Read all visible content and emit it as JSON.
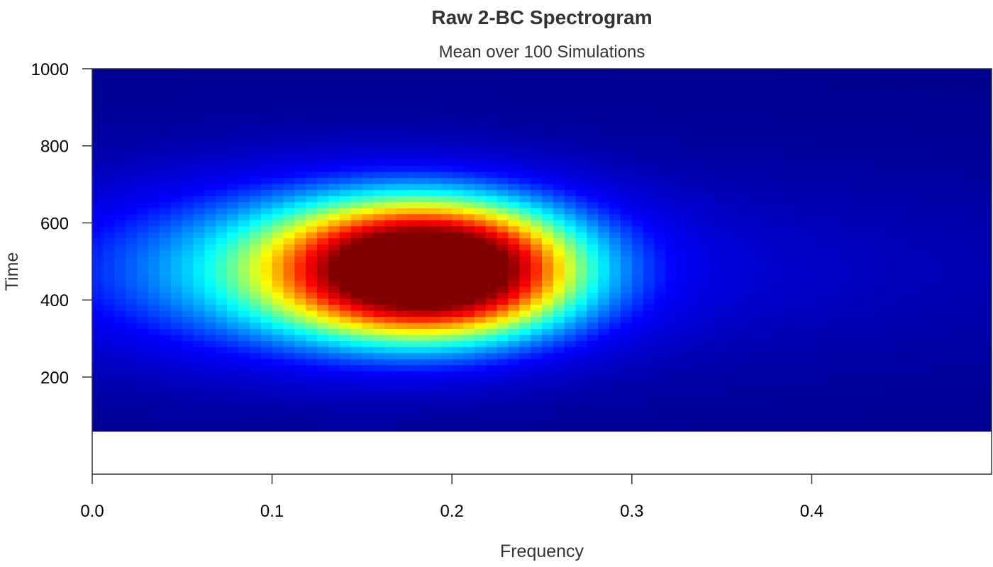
{
  "chart_data": {
    "type": "heatmap",
    "title": "Raw 2-BC Spectrogram",
    "subtitle": "Mean over 100 Simulations",
    "xlabel": "Frequency",
    "ylabel": "Time",
    "xlim": [
      0.0,
      0.5
    ],
    "ylim": [
      0,
      1000
    ],
    "x_ticks": [
      "0.0",
      "0.1",
      "0.2",
      "0.3",
      "0.4"
    ],
    "y_ticks": [
      "200",
      "400",
      "600",
      "800",
      "1000"
    ],
    "x_tick_values": [
      0.0,
      0.1,
      0.2,
      0.3,
      0.4
    ],
    "y_tick_values": [
      200,
      400,
      600,
      800,
      1000
    ],
    "data_time_range": [
      60,
      1000
    ],
    "colormap": [
      "#00008F",
      "#0000FF",
      "#00FFFF",
      "#FFFF00",
      "#FF0000",
      "#800000"
    ],
    "background": "#FFFFFF",
    "intensity_model": {
      "peak_frequency": 0.19,
      "peak_time": 480,
      "peak_value": 1.0,
      "components": [
        {
          "center_frequency": 0.19,
          "center_time": 480,
          "sigma_frequency": 0.055,
          "sigma_time": 120,
          "amplitude": 1.0
        },
        {
          "center_frequency": 0.12,
          "center_time": 480,
          "sigma_frequency": 0.09,
          "sigma_time": 160,
          "amplitude": 0.3
        },
        {
          "center_frequency": 0.19,
          "center_time": 480,
          "sigma_frequency": 0.25,
          "sigma_time": 190,
          "amplitude": 0.12
        }
      ]
    }
  }
}
